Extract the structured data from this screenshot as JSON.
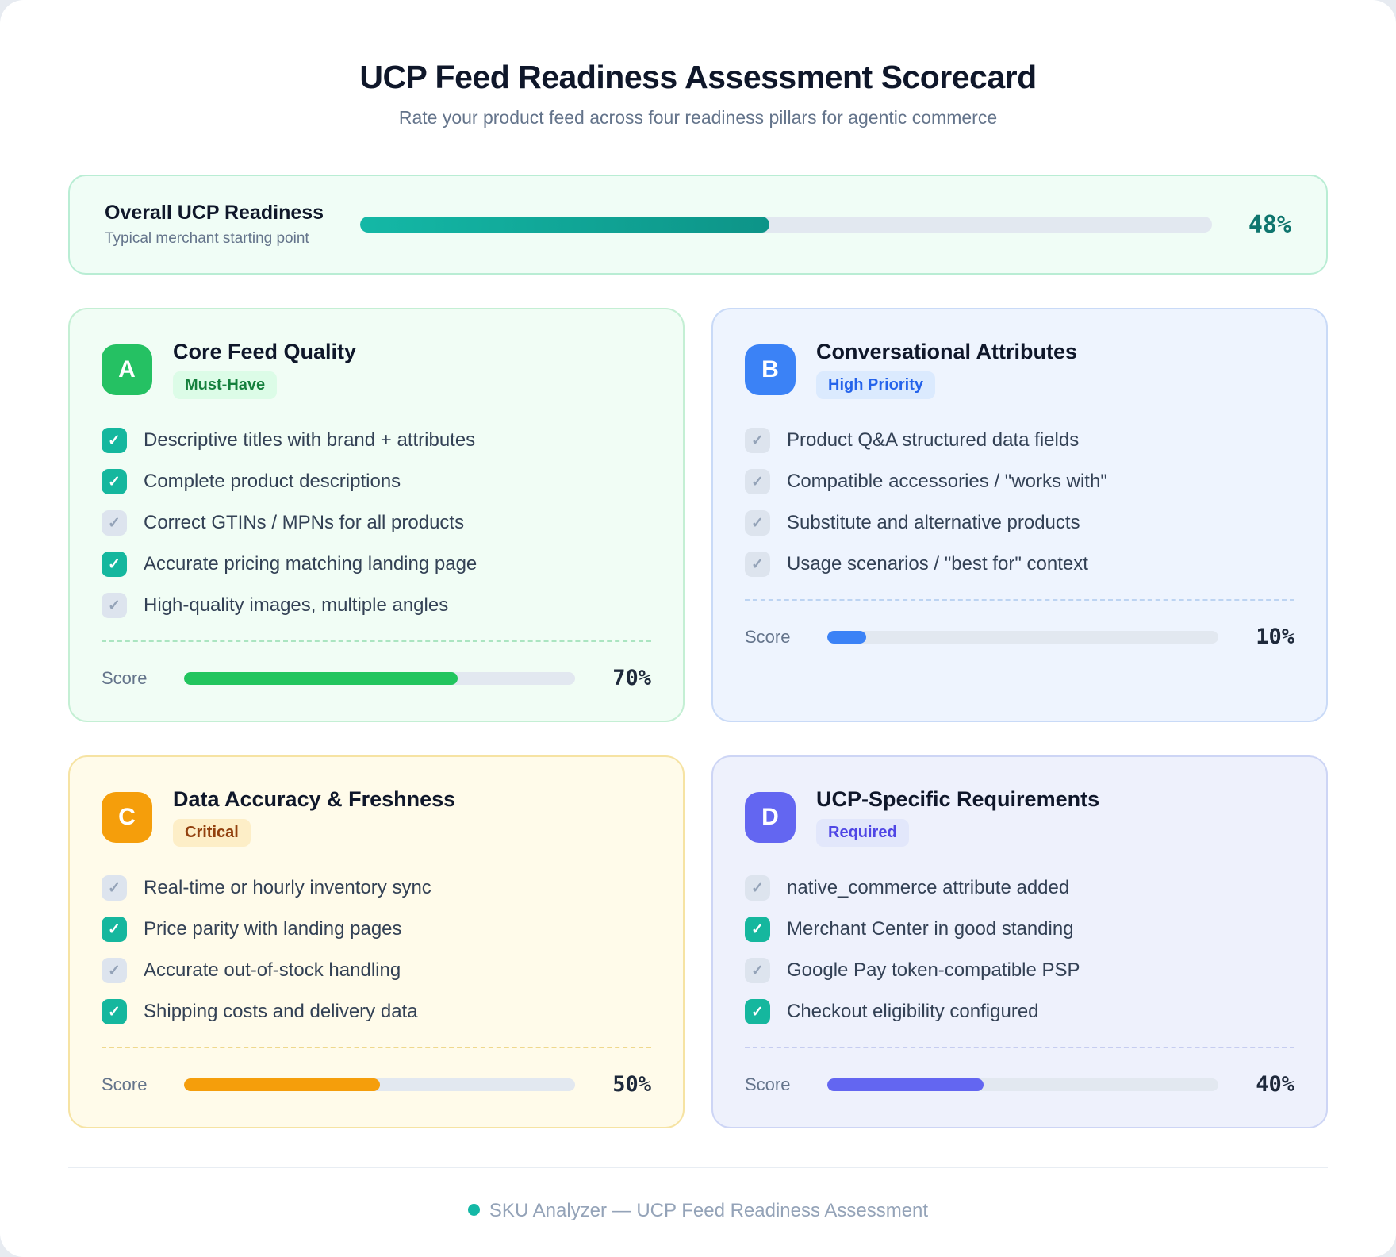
{
  "header": {
    "title": "UCP Feed Readiness Assessment Scorecard",
    "subtitle": "Rate your product feed across four readiness pillars for agentic commerce"
  },
  "overall": {
    "title": "Overall UCP Readiness",
    "subtitle": "Typical merchant starting point",
    "percent": 48,
    "percent_label": "48%",
    "fill_color_start": "#14b8a6",
    "fill_color_end": "#0d9488"
  },
  "cards": [
    {
      "letter": "A",
      "title": "Core Feed Quality",
      "tag": "Must-Have",
      "accent": "#22c55e",
      "score_label": "Score",
      "score": 70,
      "score_text": "70%",
      "items": [
        {
          "label": "Descriptive titles with brand + attributes",
          "checked": true
        },
        {
          "label": "Complete product descriptions",
          "checked": true
        },
        {
          "label": "Correct GTINs / MPNs for all products",
          "checked": false
        },
        {
          "label": "Accurate pricing matching landing page",
          "checked": true
        },
        {
          "label": "High-quality images, multiple angles",
          "checked": false
        }
      ]
    },
    {
      "letter": "B",
      "title": "Conversational Attributes",
      "tag": "High Priority",
      "accent": "#3b82f6",
      "score_label": "Score",
      "score": 10,
      "score_text": "10%",
      "items": [
        {
          "label": "Product Q&A structured data fields",
          "checked": false
        },
        {
          "label": "Compatible accessories / \"works with\"",
          "checked": false
        },
        {
          "label": "Substitute and alternative products",
          "checked": false
        },
        {
          "label": "Usage scenarios / \"best for\" context",
          "checked": false
        }
      ]
    },
    {
      "letter": "C",
      "title": "Data Accuracy & Freshness",
      "tag": "Critical",
      "accent": "#f59e0b",
      "score_label": "Score",
      "score": 50,
      "score_text": "50%",
      "items": [
        {
          "label": "Real-time or hourly inventory sync",
          "checked": false
        },
        {
          "label": "Price parity with landing pages",
          "checked": true
        },
        {
          "label": "Accurate out-of-stock handling",
          "checked": false
        },
        {
          "label": "Shipping costs and delivery data",
          "checked": true
        }
      ]
    },
    {
      "letter": "D",
      "title": "UCP-Specific Requirements",
      "tag": "Required",
      "accent": "#6366f1",
      "score_label": "Score",
      "score": 40,
      "score_text": "40%",
      "items": [
        {
          "label": "native_commerce attribute added",
          "checked": false
        },
        {
          "label": "Merchant Center in good standing",
          "checked": true
        },
        {
          "label": "Google Pay token-compatible PSP",
          "checked": false
        },
        {
          "label": "Checkout eligibility configured",
          "checked": true
        }
      ]
    }
  ],
  "footer": {
    "text": "SKU Analyzer — UCP Feed Readiness Assessment",
    "dot_color": "#14b8a6"
  },
  "colors": {
    "checked_checkbox": "#15b79e",
    "unchecked_checkbox": "#dde4ee",
    "progress_track": "#e2e8f0",
    "overall_percent_text": "#0f766e"
  }
}
